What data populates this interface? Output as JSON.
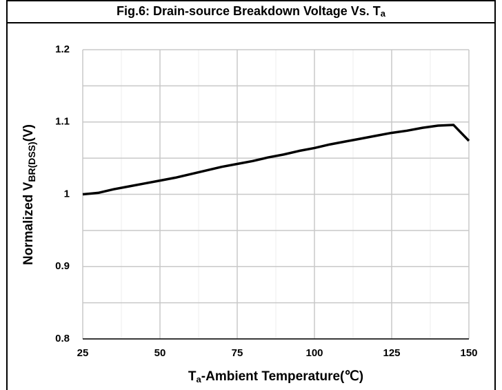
{
  "chart_data": {
    "type": "line",
    "title": [
      "Fig.6: Drain-source Breakdown Voltage Vs. T",
      "a"
    ],
    "x_label": [
      "T",
      "a",
      "-Ambient Temperature(℃)"
    ],
    "y_label": [
      "Normalized V",
      "BR(DSS)",
      "(V)"
    ],
    "x": [
      25,
      30,
      35,
      40,
      45,
      50,
      55,
      60,
      65,
      70,
      75,
      80,
      85,
      90,
      95,
      100,
      105,
      110,
      115,
      120,
      125,
      130,
      135,
      140,
      145,
      150
    ],
    "series": [
      {
        "color": "#000000",
        "values": [
          1.0,
          1.002,
          1.007,
          1.011,
          1.015,
          1.019,
          1.023,
          1.028,
          1.033,
          1.038,
          1.042,
          1.046,
          1.051,
          1.055,
          1.06,
          1.064,
          1.069,
          1.073,
          1.077,
          1.081,
          1.085,
          1.088,
          1.092,
          1.095,
          1.096,
          1.074
        ]
      }
    ],
    "xlim": [
      25,
      150
    ],
    "xticks": [
      25,
      50,
      75,
      100,
      125,
      150
    ],
    "xminor": [
      37.5,
      62.5,
      87.5,
      112.5,
      137.5
    ],
    "ylim": [
      0.8,
      1.2
    ],
    "yticks": [
      0.8,
      0.9,
      1,
      1.1,
      1.2
    ],
    "yminor": [
      0.85,
      0.95,
      1.05,
      1.15
    ],
    "grid": true
  }
}
